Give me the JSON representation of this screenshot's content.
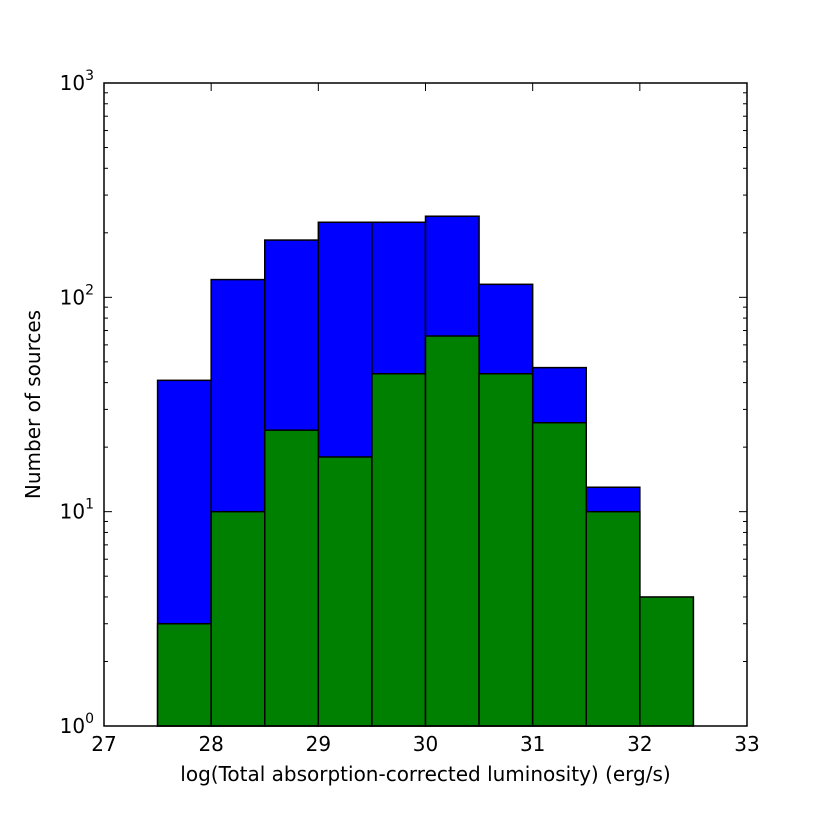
{
  "chart_data": {
    "type": "bar",
    "title": "",
    "xlabel": "log(Total absorption-corrected luminosity) (erg/s)",
    "ylabel": "Number of sources",
    "xlim": [
      27,
      33
    ],
    "ylim": [
      1,
      1000
    ],
    "yscale": "log",
    "grid": false,
    "bin_edges": [
      27.5,
      28.0,
      28.5,
      29.0,
      29.5,
      30.0,
      30.5,
      31.0,
      31.5,
      32.0,
      32.5
    ],
    "x_ticks": [
      "27",
      "28",
      "29",
      "30",
      "31",
      "32",
      "33"
    ],
    "y_ticks": [
      {
        "value": 1,
        "base": "10",
        "exp": "0"
      },
      {
        "value": 10,
        "base": "10",
        "exp": "1"
      },
      {
        "value": 100,
        "base": "10",
        "exp": "2"
      },
      {
        "value": 1000,
        "base": "10",
        "exp": "3"
      }
    ],
    "series": [
      {
        "color": "#0000ff",
        "values": [
          41,
          121,
          185,
          224,
          224,
          239,
          115,
          47,
          13,
          0
        ]
      },
      {
        "color": "#008000",
        "values": [
          3,
          10,
          24,
          18,
          44,
          66,
          44,
          26,
          10,
          4
        ]
      }
    ]
  }
}
